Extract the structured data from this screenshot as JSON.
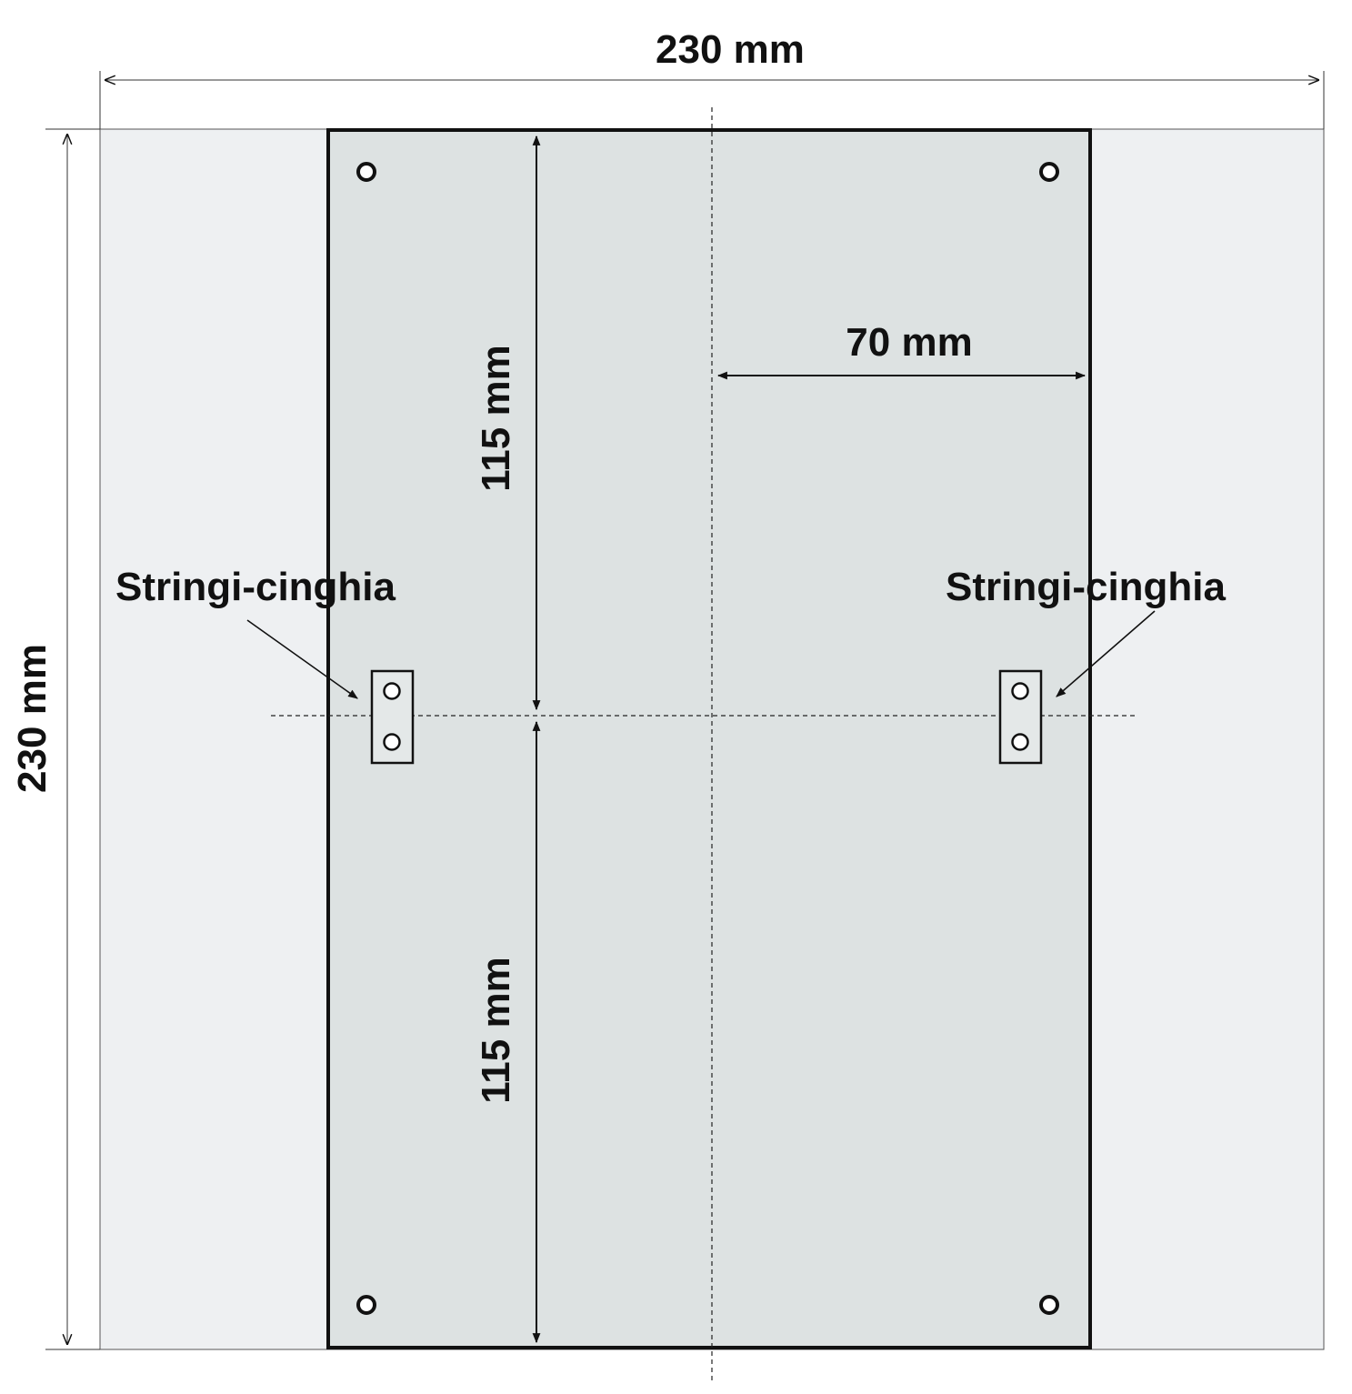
{
  "dimensions": {
    "total_width": "230 mm",
    "total_height": "230 mm",
    "upper_half": "115 mm",
    "lower_half": "115 mm",
    "half_width": "70 mm"
  },
  "labels": {
    "strap_left": "Stringi-cinghia",
    "strap_right": "Stringi-cinghia"
  },
  "colors": {
    "outer_area": "#eef0f2",
    "plate": "#dde2e2",
    "line": "#111111"
  }
}
